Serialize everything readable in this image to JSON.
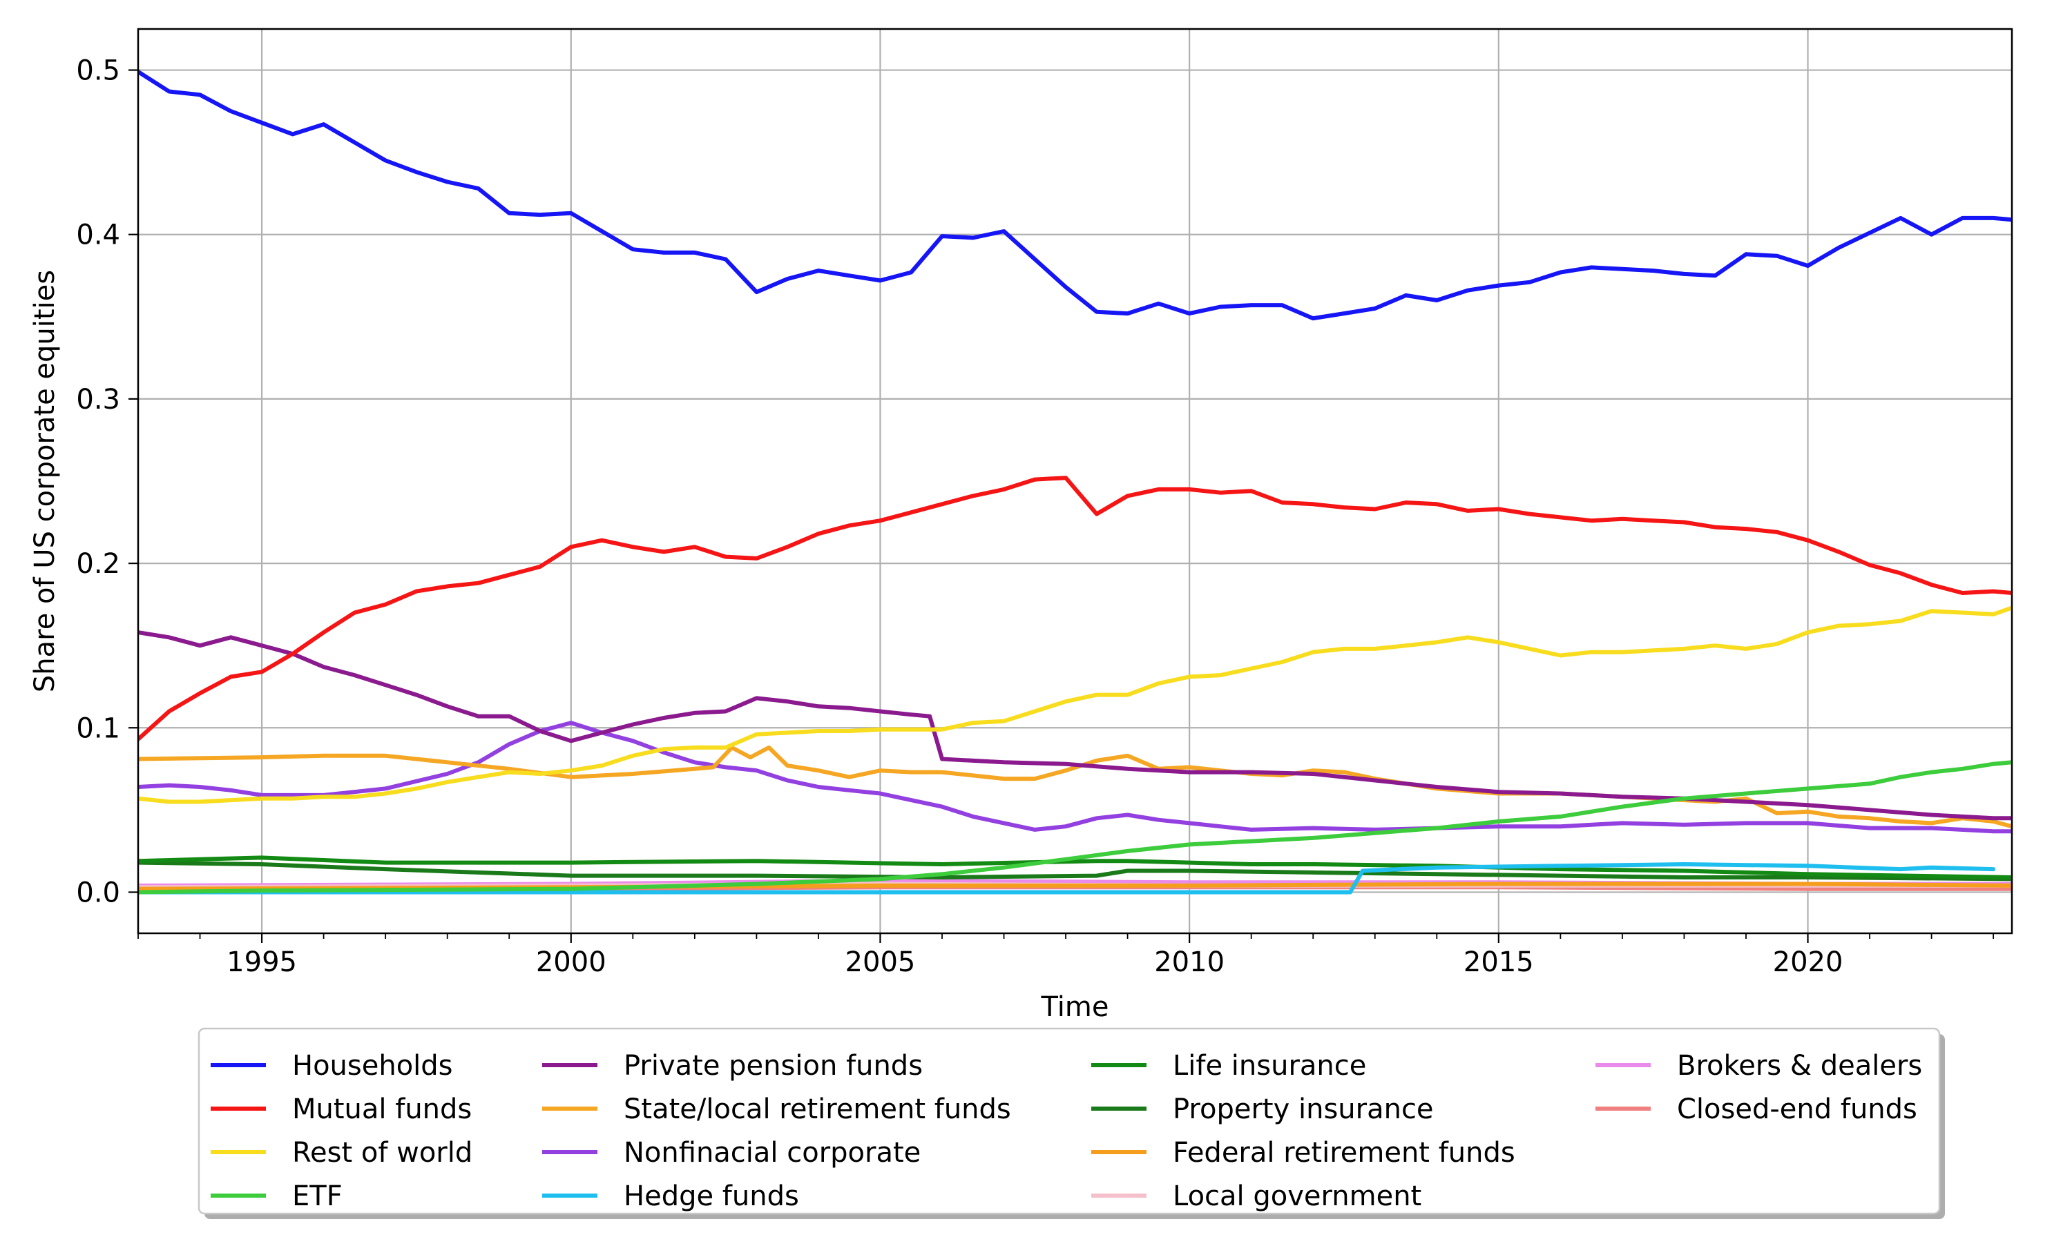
{
  "chart_data": {
    "type": "line",
    "title": "",
    "xlabel": "Time",
    "ylabel": "Share of US corporate equities",
    "xlim": [
      1993.0,
      2023.3
    ],
    "ylim": [
      -0.025,
      0.525
    ],
    "xticks": [
      1995,
      2000,
      2005,
      2010,
      2015,
      2020
    ],
    "xtick_labels": [
      "1995",
      "2000",
      "2005",
      "2010",
      "2015",
      "2020"
    ],
    "yticks": [
      0.0,
      0.1,
      0.2,
      0.3,
      0.4,
      0.5
    ],
    "ytick_labels": [
      "0.0",
      "0.1",
      "0.2",
      "0.3",
      "0.4",
      "0.5"
    ],
    "grid": true,
    "legend_position": "below plot, 4 columns",
    "series": [
      {
        "name": "Households",
        "color": "#1515f5",
        "x": [
          1993.0,
          1993.5,
          1994.0,
          1994.5,
          1995.0,
          1995.5,
          1996.0,
          1996.5,
          1997.0,
          1997.5,
          1998.0,
          1998.5,
          1999.0,
          1999.5,
          2000.0,
          2000.5,
          2001.0,
          2001.5,
          2002.0,
          2002.5,
          2003.0,
          2003.5,
          2004.0,
          2004.5,
          2005.0,
          2005.5,
          2006.0,
          2006.5,
          2007.0,
          2007.5,
          2008.0,
          2008.5,
          2009.0,
          2009.5,
          2010.0,
          2010.5,
          2011.0,
          2011.5,
          2012.0,
          2012.5,
          2013.0,
          2013.5,
          2014.0,
          2014.5,
          2015.0,
          2015.5,
          2016.0,
          2016.5,
          2017.0,
          2017.5,
          2018.0,
          2018.5,
          2019.0,
          2019.5,
          2020.0,
          2020.5,
          2021.0,
          2021.5,
          2022.0,
          2022.5,
          2023.0,
          2023.3
        ],
        "values": [
          0.499,
          0.487,
          0.485,
          0.475,
          0.468,
          0.461,
          0.467,
          0.456,
          0.445,
          0.438,
          0.432,
          0.428,
          0.413,
          0.412,
          0.413,
          0.402,
          0.391,
          0.389,
          0.389,
          0.385,
          0.365,
          0.373,
          0.378,
          0.375,
          0.372,
          0.377,
          0.399,
          0.398,
          0.402,
          0.385,
          0.368,
          0.353,
          0.352,
          0.358,
          0.352,
          0.356,
          0.357,
          0.357,
          0.349,
          0.352,
          0.355,
          0.363,
          0.36,
          0.366,
          0.369,
          0.371,
          0.377,
          0.38,
          0.379,
          0.378,
          0.376,
          0.375,
          0.388,
          0.387,
          0.381,
          0.392,
          0.401,
          0.41,
          0.4,
          0.41,
          0.41,
          0.409
        ]
      },
      {
        "name": "Mutual funds",
        "color": "#f51515",
        "x": [
          1993.0,
          1993.5,
          1994.0,
          1994.5,
          1995.0,
          1995.5,
          1996.0,
          1996.5,
          1997.0,
          1997.5,
          1998.0,
          1998.5,
          1999.0,
          1999.5,
          2000.0,
          2000.5,
          2001.0,
          2001.5,
          2002.0,
          2002.5,
          2003.0,
          2003.5,
          2004.0,
          2004.5,
          2005.0,
          2005.5,
          2006.0,
          2006.5,
          2007.0,
          2007.5,
          2008.0,
          2008.5,
          2009.0,
          2009.5,
          2010.0,
          2010.5,
          2011.0,
          2011.5,
          2012.0,
          2012.5,
          2013.0,
          2013.5,
          2014.0,
          2014.5,
          2015.0,
          2015.5,
          2016.0,
          2016.5,
          2017.0,
          2017.5,
          2018.0,
          2018.5,
          2019.0,
          2019.5,
          2020.0,
          2020.5,
          2021.0,
          2021.5,
          2022.0,
          2022.5,
          2023.0,
          2023.3
        ],
        "values": [
          0.093,
          0.11,
          0.121,
          0.131,
          0.134,
          0.145,
          0.158,
          0.17,
          0.175,
          0.183,
          0.186,
          0.188,
          0.193,
          0.198,
          0.21,
          0.214,
          0.21,
          0.207,
          0.21,
          0.204,
          0.203,
          0.21,
          0.218,
          0.223,
          0.226,
          0.231,
          0.236,
          0.241,
          0.245,
          0.251,
          0.252,
          0.23,
          0.241,
          0.245,
          0.245,
          0.243,
          0.244,
          0.237,
          0.236,
          0.234,
          0.233,
          0.237,
          0.236,
          0.232,
          0.233,
          0.23,
          0.228,
          0.226,
          0.227,
          0.226,
          0.225,
          0.222,
          0.221,
          0.219,
          0.214,
          0.207,
          0.199,
          0.194,
          0.187,
          0.182,
          0.183,
          0.182
        ]
      },
      {
        "name": "Rest of world",
        "color": "#f8dc1e",
        "x": [
          1993.0,
          1993.5,
          1994.0,
          1994.5,
          1995.0,
          1995.5,
          1996.0,
          1996.5,
          1997.0,
          1997.5,
          1998.0,
          1998.5,
          1999.0,
          1999.5,
          2000.0,
          2000.5,
          2001.0,
          2001.5,
          2002.0,
          2002.5,
          2003.0,
          2003.5,
          2004.0,
          2004.5,
          2005.0,
          2005.5,
          2006.0,
          2006.5,
          2007.0,
          2007.5,
          2008.0,
          2008.5,
          2009.0,
          2009.5,
          2010.0,
          2010.5,
          2011.0,
          2011.5,
          2012.0,
          2012.5,
          2013.0,
          2013.5,
          2014.0,
          2014.5,
          2015.0,
          2015.5,
          2016.0,
          2016.5,
          2017.0,
          2017.5,
          2018.0,
          2018.5,
          2019.0,
          2019.5,
          2020.0,
          2020.5,
          2021.0,
          2021.5,
          2022.0,
          2022.5,
          2023.0,
          2023.3
        ],
        "values": [
          0.057,
          0.055,
          0.055,
          0.056,
          0.057,
          0.057,
          0.058,
          0.058,
          0.06,
          0.063,
          0.067,
          0.07,
          0.073,
          0.072,
          0.074,
          0.077,
          0.083,
          0.087,
          0.088,
          0.088,
          0.096,
          0.097,
          0.098,
          0.098,
          0.099,
          0.099,
          0.099,
          0.103,
          0.104,
          0.11,
          0.116,
          0.12,
          0.12,
          0.127,
          0.131,
          0.132,
          0.136,
          0.14,
          0.146,
          0.148,
          0.148,
          0.15,
          0.152,
          0.155,
          0.152,
          0.148,
          0.144,
          0.146,
          0.146,
          0.147,
          0.148,
          0.15,
          0.148,
          0.151,
          0.158,
          0.162,
          0.163,
          0.165,
          0.171,
          0.17,
          0.169,
          0.173
        ]
      },
      {
        "name": "ETF",
        "color": "#3ccc3c",
        "x": [
          1993.0,
          1995.0,
          2000.0,
          2003.0,
          2005.0,
          2006.0,
          2007.0,
          2008.0,
          2009.0,
          2010.0,
          2011.0,
          2012.0,
          2013.0,
          2014.0,
          2015.0,
          2016.0,
          2017.0,
          2018.0,
          2019.0,
          2020.0,
          2021.0,
          2021.5,
          2022.0,
          2022.5,
          2023.0,
          2023.3
        ],
        "values": [
          0.0,
          0.001,
          0.002,
          0.005,
          0.008,
          0.011,
          0.015,
          0.02,
          0.025,
          0.029,
          0.031,
          0.033,
          0.036,
          0.039,
          0.043,
          0.046,
          0.052,
          0.057,
          0.06,
          0.063,
          0.066,
          0.07,
          0.073,
          0.075,
          0.078,
          0.079
        ]
      },
      {
        "name": "Private pension funds",
        "color": "#8a1a8e",
        "x": [
          1993.0,
          1993.5,
          1994.0,
          1994.5,
          1995.0,
          1995.5,
          1996.0,
          1996.5,
          1997.0,
          1997.5,
          1998.0,
          1998.5,
          1999.0,
          1999.5,
          2000.0,
          2000.5,
          2001.0,
          2001.5,
          2002.0,
          2002.5,
          2003.0,
          2003.5,
          2004.0,
          2004.5,
          2005.0,
          2005.5,
          2005.8,
          2006.0,
          2006.5,
          2007.0,
          2008.0,
          2009.0,
          2010.0,
          2011.0,
          2012.0,
          2013.0,
          2014.0,
          2015.0,
          2016.0,
          2017.0,
          2018.0,
          2019.0,
          2020.0,
          2021.0,
          2022.0,
          2023.0,
          2023.3
        ],
        "values": [
          0.158,
          0.155,
          0.15,
          0.155,
          0.15,
          0.145,
          0.137,
          0.132,
          0.126,
          0.12,
          0.113,
          0.107,
          0.107,
          0.098,
          0.092,
          0.097,
          0.102,
          0.106,
          0.109,
          0.11,
          0.118,
          0.116,
          0.113,
          0.112,
          0.11,
          0.108,
          0.107,
          0.081,
          0.08,
          0.079,
          0.078,
          0.075,
          0.073,
          0.073,
          0.072,
          0.068,
          0.064,
          0.061,
          0.06,
          0.058,
          0.057,
          0.055,
          0.053,
          0.05,
          0.047,
          0.045,
          0.045
        ]
      },
      {
        "name": "State/local retirement funds",
        "color": "#f5a623",
        "x": [
          1993.0,
          1995.0,
          1996.0,
          1997.0,
          1998.0,
          1999.0,
          2000.0,
          2001.0,
          2002.0,
          2002.3,
          2002.6,
          2002.9,
          2003.2,
          2003.5,
          2004.0,
          2004.5,
          2005.0,
          2005.5,
          2006.0,
          2007.0,
          2007.5,
          2008.0,
          2008.5,
          2009.0,
          2009.5,
          2010.0,
          2010.5,
          2011.0,
          2011.5,
          2012.0,
          2012.5,
          2013.0,
          2014.0,
          2015.0,
          2016.0,
          2017.0,
          2018.0,
          2018.5,
          2019.0,
          2019.5,
          2020.0,
          2020.5,
          2021.0,
          2021.5,
          2022.0,
          2022.5,
          2023.0,
          2023.3
        ],
        "values": [
          0.081,
          0.082,
          0.083,
          0.083,
          0.079,
          0.075,
          0.07,
          0.072,
          0.075,
          0.076,
          0.088,
          0.082,
          0.088,
          0.077,
          0.074,
          0.07,
          0.074,
          0.073,
          0.073,
          0.069,
          0.069,
          0.074,
          0.08,
          0.083,
          0.075,
          0.076,
          0.074,
          0.072,
          0.071,
          0.074,
          0.073,
          0.069,
          0.063,
          0.06,
          0.06,
          0.058,
          0.056,
          0.055,
          0.057,
          0.048,
          0.049,
          0.046,
          0.045,
          0.043,
          0.042,
          0.045,
          0.043,
          0.04
        ]
      },
      {
        "name": "Nonfinacial corporate",
        "color": "#9340e0",
        "x": [
          1993.0,
          1993.5,
          1994.0,
          1994.5,
          1995.0,
          1996.0,
          1997.0,
          1998.0,
          1998.5,
          1999.0,
          1999.5,
          2000.0,
          2000.5,
          2001.0,
          2001.5,
          2002.0,
          2002.5,
          2003.0,
          2003.5,
          2004.0,
          2004.5,
          2005.0,
          2005.5,
          2006.0,
          2006.5,
          2007.0,
          2007.5,
          2008.0,
          2008.5,
          2009.0,
          2009.5,
          2010.0,
          2010.5,
          2011.0,
          2012.0,
          2013.0,
          2014.0,
          2015.0,
          2016.0,
          2017.0,
          2018.0,
          2019.0,
          2020.0,
          2021.0,
          2022.0,
          2023.0,
          2023.3
        ],
        "values": [
          0.064,
          0.065,
          0.064,
          0.062,
          0.059,
          0.059,
          0.063,
          0.072,
          0.079,
          0.09,
          0.098,
          0.103,
          0.097,
          0.092,
          0.085,
          0.079,
          0.076,
          0.074,
          0.068,
          0.064,
          0.062,
          0.06,
          0.056,
          0.052,
          0.046,
          0.042,
          0.038,
          0.04,
          0.045,
          0.047,
          0.044,
          0.042,
          0.04,
          0.038,
          0.039,
          0.038,
          0.039,
          0.04,
          0.04,
          0.042,
          0.041,
          0.042,
          0.042,
          0.039,
          0.039,
          0.037,
          0.037
        ]
      },
      {
        "name": "Hedge funds",
        "color": "#1ebeef",
        "x": [
          1993.0,
          2012.6,
          2012.8,
          2014.0,
          2016.0,
          2018.0,
          2020.0,
          2021.5,
          2022.0,
          2023.0
        ],
        "values": [
          0.0,
          0.0,
          0.013,
          0.015,
          0.016,
          0.017,
          0.016,
          0.014,
          0.015,
          0.014
        ]
      },
      {
        "name": "Life insurance",
        "color": "#138a13",
        "x": [
          1993.0,
          1995.0,
          1997.0,
          2000.0,
          2003.0,
          2006.0,
          2008.5,
          2009.0,
          2010.0,
          2011.0,
          2012.0,
          2014.0,
          2016.0,
          2018.0,
          2020.0,
          2023.3
        ],
        "values": [
          0.019,
          0.021,
          0.018,
          0.018,
          0.019,
          0.017,
          0.019,
          0.019,
          0.018,
          0.017,
          0.017,
          0.016,
          0.014,
          0.013,
          0.011,
          0.009
        ]
      },
      {
        "name": "Property insurance",
        "color": "#1a7a1a",
        "x": [
          1993.0,
          1995.0,
          1997.0,
          2000.0,
          2003.0,
          2006.0,
          2008.5,
          2009.0,
          2010.0,
          2012.0,
          2014.0,
          2016.0,
          2018.0,
          2020.0,
          2023.3
        ],
        "values": [
          0.018,
          0.017,
          0.014,
          0.01,
          0.01,
          0.009,
          0.01,
          0.013,
          0.013,
          0.012,
          0.011,
          0.01,
          0.009,
          0.009,
          0.008
        ]
      },
      {
        "name": "Federal retirement funds",
        "color": "#f59e1e",
        "x": [
          1993.0,
          2000.0,
          2005.0,
          2010.0,
          2015.0,
          2020.0,
          2023.3
        ],
        "values": [
          0.002,
          0.003,
          0.004,
          0.004,
          0.005,
          0.005,
          0.004
        ]
      },
      {
        "name": "Local government",
        "color": "#f5c0cb",
        "x": [
          1993.0,
          2000.0,
          2005.0,
          2010.0,
          2015.0,
          2020.0,
          2023.3
        ],
        "values": [
          0.003,
          0.004,
          0.005,
          0.004,
          0.004,
          0.004,
          0.004
        ]
      },
      {
        "name": "Brokers & dealers",
        "color": "#ea8aea",
        "x": [
          1993.0,
          2000.0,
          2005.0,
          2010.0,
          2015.0,
          2020.0,
          2023.3
        ],
        "values": [
          0.004,
          0.005,
          0.007,
          0.006,
          0.006,
          0.005,
          0.005
        ]
      },
      {
        "name": "Closed-end funds",
        "color": "#f08080",
        "x": [
          1993.0,
          1997.0,
          2000.0,
          2005.0,
          2010.0,
          2015.0,
          2020.0,
          2023.3
        ],
        "values": [
          0.002,
          0.003,
          0.002,
          0.003,
          0.003,
          0.003,
          0.002,
          0.002
        ]
      }
    ]
  }
}
